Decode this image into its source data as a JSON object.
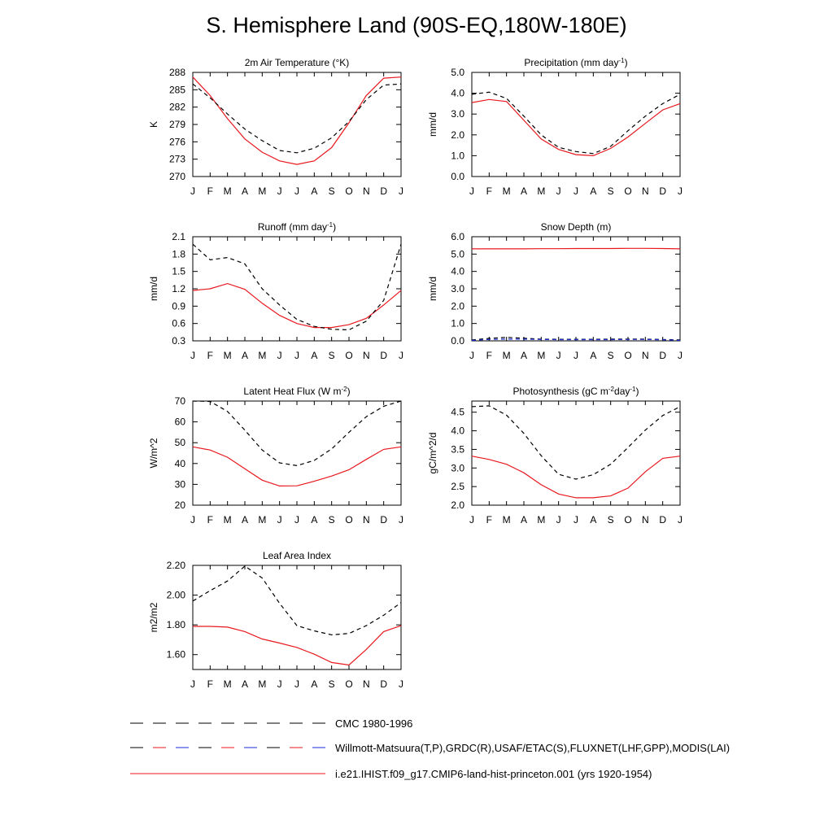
{
  "page": {
    "title": "S. Hemisphere Land (90S-EQ,180W-180E)"
  },
  "legend": {
    "items": [
      {
        "label": "CMC 1980-1996",
        "style": "dashed",
        "colors": [
          "#000000"
        ]
      },
      {
        "label": "Willmott-Matsuura(T,P),GRDC(R),USAF/ETAC(S),FLUXNET(LHF,GPP),MODIS(LAI)",
        "style": "dashed",
        "colors": [
          "#000000",
          "#e8191f",
          "#1f2fd8"
        ]
      },
      {
        "label": "i.e21.IHIST.f09_g17.CMIP6-land-hist-princeton.001 (yrs 1920-1954)",
        "style": "solid",
        "colors": [
          "#e8191f"
        ]
      }
    ]
  },
  "colors": {
    "model": "#e8191f",
    "observation": "#000000",
    "observation_alt": "#1f2fd8"
  },
  "chart_data": [
    {
      "id": "temperature",
      "type": "line",
      "title": "2m Air Temperature (°K)",
      "ylabel": "K",
      "categories": [
        "J",
        "F",
        "M",
        "A",
        "M",
        "J",
        "J",
        "A",
        "S",
        "O",
        "N",
        "D",
        "J"
      ],
      "ylim": [
        270,
        288
      ],
      "yticks": [
        "270",
        "273",
        "276",
        "279",
        "282",
        "285",
        "288"
      ],
      "series": [
        {
          "color": "#e8191f",
          "dash": "solid",
          "values": [
            287.2,
            284.0,
            280.0,
            276.5,
            274.2,
            272.7,
            272.1,
            272.7,
            275.0,
            279.3,
            284.0,
            287.0,
            287.2
          ]
        },
        {
          "color": "#000000",
          "dash": "dashed",
          "values": [
            286.0,
            283.6,
            280.8,
            278.2,
            276.2,
            274.5,
            274.1,
            274.9,
            276.7,
            279.5,
            283.3,
            285.8,
            286.0
          ]
        }
      ]
    },
    {
      "id": "precipitation",
      "type": "line",
      "title": "Precipitation (mm day-1)",
      "ylabel": "mm/d",
      "categories": [
        "J",
        "F",
        "M",
        "A",
        "M",
        "J",
        "J",
        "A",
        "S",
        "O",
        "N",
        "D",
        "J"
      ],
      "ylim": [
        0.0,
        5.0
      ],
      "yticks": [
        "0.0",
        "1.0",
        "2.0",
        "3.0",
        "4.0",
        "5.0"
      ],
      "series": [
        {
          "color": "#e8191f",
          "dash": "solid",
          "values": [
            3.55,
            3.7,
            3.6,
            2.7,
            1.8,
            1.3,
            1.05,
            1.0,
            1.35,
            1.9,
            2.55,
            3.2,
            3.5
          ]
        },
        {
          "color": "#000000",
          "dash": "dashed",
          "values": [
            3.95,
            4.05,
            3.75,
            2.9,
            2.0,
            1.4,
            1.2,
            1.1,
            1.45,
            2.2,
            2.9,
            3.5,
            3.95
          ]
        }
      ]
    },
    {
      "id": "runoff",
      "type": "line",
      "title": "Runoff (mm day-1)",
      "ylabel": "mm/d",
      "categories": [
        "J",
        "F",
        "M",
        "A",
        "M",
        "J",
        "J",
        "A",
        "S",
        "O",
        "N",
        "D",
        "J"
      ],
      "ylim": [
        0.3,
        2.1
      ],
      "yticks": [
        "0.3",
        "0.6",
        "0.9",
        "1.2",
        "1.5",
        "1.8",
        "2.1"
      ],
      "series": [
        {
          "color": "#e8191f",
          "dash": "solid",
          "values": [
            1.17,
            1.2,
            1.29,
            1.19,
            0.95,
            0.74,
            0.6,
            0.53,
            0.53,
            0.58,
            0.69,
            0.92,
            1.17
          ]
        },
        {
          "color": "#000000",
          "dash": "dashed",
          "values": [
            1.97,
            1.7,
            1.74,
            1.63,
            1.2,
            0.92,
            0.67,
            0.55,
            0.5,
            0.49,
            0.64,
            1.0,
            1.97
          ]
        }
      ]
    },
    {
      "id": "snow_depth",
      "type": "line",
      "title": "Snow Depth (m)",
      "ylabel": "mm/d",
      "categories": [
        "J",
        "F",
        "M",
        "A",
        "M",
        "J",
        "J",
        "A",
        "S",
        "O",
        "N",
        "D",
        "J"
      ],
      "ylim": [
        0.0,
        6.0
      ],
      "yticks": [
        "0.0",
        "1.0",
        "2.0",
        "3.0",
        "4.0",
        "5.0",
        "6.0"
      ],
      "series": [
        {
          "color": "#e8191f",
          "dash": "solid",
          "values": [
            5.3,
            5.3,
            5.3,
            5.3,
            5.31,
            5.31,
            5.32,
            5.32,
            5.32,
            5.33,
            5.33,
            5.32,
            5.3
          ]
        },
        {
          "color": "#000000",
          "dash": "dashed",
          "values": [
            0.05,
            0.14,
            0.2,
            0.15,
            0.1,
            0.09,
            0.09,
            0.09,
            0.1,
            0.1,
            0.1,
            0.08,
            0.05
          ]
        },
        {
          "color": "#1f2fd8",
          "dash": "dashed",
          "values": [
            0.03,
            0.08,
            0.1,
            0.1,
            0.08,
            0.07,
            0.07,
            0.07,
            0.07,
            0.08,
            0.08,
            0.06,
            0.03
          ]
        }
      ]
    },
    {
      "id": "latent_heat",
      "type": "line",
      "title": "Latent Heat Flux (W m-2)",
      "ylabel": "W/m^2",
      "categories": [
        "J",
        "F",
        "M",
        "A",
        "M",
        "J",
        "J",
        "A",
        "S",
        "O",
        "N",
        "D",
        "J"
      ],
      "ylim": [
        20,
        70
      ],
      "yticks": [
        "20",
        "30",
        "40",
        "50",
        "60",
        "70"
      ],
      "series": [
        {
          "color": "#e8191f",
          "dash": "solid",
          "values": [
            48.0,
            46.5,
            43.0,
            37.5,
            32.0,
            29.2,
            29.3,
            31.5,
            34.0,
            37.0,
            42.0,
            46.8,
            48.0
          ]
        },
        {
          "color": "#000000",
          "dash": "dashed",
          "values": [
            70.0,
            69.8,
            65.0,
            56.0,
            46.5,
            40.3,
            39.0,
            41.5,
            47.0,
            55.0,
            62.5,
            67.5,
            70.0
          ]
        }
      ]
    },
    {
      "id": "photosynthesis",
      "type": "line",
      "title": "Photosynthesis (gC m-2day-1)",
      "ylabel": "gC/m^2/d",
      "categories": [
        "J",
        "F",
        "M",
        "A",
        "M",
        "J",
        "J",
        "A",
        "S",
        "O",
        "N",
        "D",
        "J"
      ],
      "ylim": [
        2.0,
        4.8
      ],
      "yticks": [
        "2.0",
        "2.5",
        "3.0",
        "3.5",
        "4.0",
        "4.5"
      ],
      "series": [
        {
          "color": "#e8191f",
          "dash": "solid",
          "values": [
            3.32,
            3.23,
            3.1,
            2.87,
            2.55,
            2.3,
            2.2,
            2.2,
            2.25,
            2.46,
            2.9,
            3.26,
            3.32
          ]
        },
        {
          "color": "#000000",
          "dash": "dashed",
          "values": [
            4.65,
            4.67,
            4.42,
            3.93,
            3.33,
            2.83,
            2.7,
            2.82,
            3.1,
            3.55,
            4.02,
            4.41,
            4.65
          ]
        }
      ]
    },
    {
      "id": "lai",
      "type": "line",
      "title": "Leaf Area Index",
      "ylabel": "m2/m2",
      "categories": [
        "J",
        "F",
        "M",
        "A",
        "M",
        "J",
        "J",
        "A",
        "S",
        "O",
        "N",
        "D",
        "J"
      ],
      "ylim": [
        1.5,
        2.2
      ],
      "yticks": [
        "1.60",
        "1.80",
        "2.00",
        "2.20"
      ],
      "series": [
        {
          "color": "#e8191f",
          "dash": "solid",
          "values": [
            1.79,
            1.79,
            1.785,
            1.755,
            1.705,
            1.678,
            1.648,
            1.603,
            1.547,
            1.53,
            1.635,
            1.755,
            1.795
          ]
        },
        {
          "color": "#000000",
          "dash": "dashed",
          "values": [
            1.96,
            2.03,
            2.095,
            2.195,
            2.115,
            1.945,
            1.795,
            1.76,
            1.733,
            1.742,
            1.795,
            1.865,
            1.95
          ]
        }
      ]
    }
  ]
}
